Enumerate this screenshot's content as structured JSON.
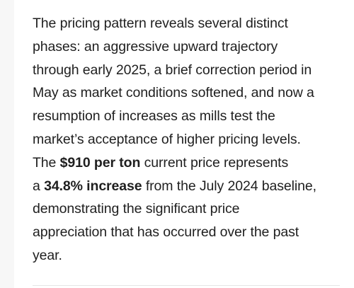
{
  "article": {
    "lines": [
      "The pricing pattern reveals several distinct",
      "phases: an aggressive upward trajectory",
      "through early 2025, a brief correction period in",
      "May as market conditions softened, and now a",
      "resumption of increases as mills test the",
      "market’s acceptance of higher pricing levels."
    ],
    "price_sentence": {
      "prefix": "The ",
      "price": "$910 per ton",
      "suffix": " current price represents"
    },
    "increase_sentence": {
      "prefix": "a ",
      "increase": "34.8% increase",
      "suffix": " from the July 2024 baseline,"
    },
    "closing_lines": [
      "demonstrating the significant price",
      "appreciation that has occurred over the past",
      "year."
    ]
  }
}
